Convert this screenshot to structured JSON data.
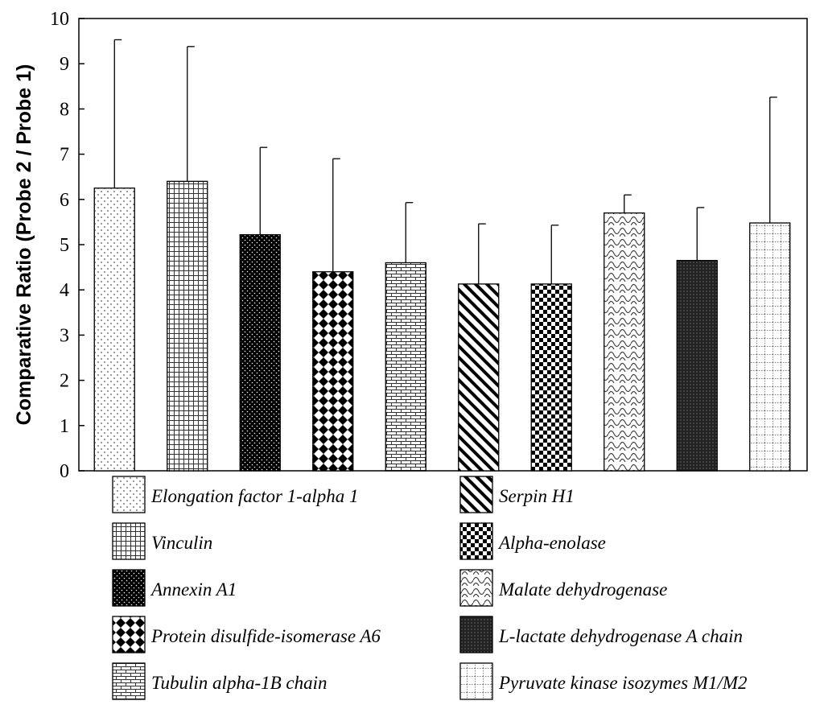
{
  "chart_data": {
    "type": "bar",
    "title": "",
    "xlabel": "",
    "ylabel": "Comparative Ratio (Probe 2 / Probe 1)",
    "ylim": [
      0,
      10
    ],
    "yticks": [
      0,
      1,
      2,
      3,
      4,
      5,
      6,
      7,
      8,
      9,
      10
    ],
    "grid": false,
    "legend_position": "bottom",
    "series": [
      {
        "name": "Elongation factor 1-alpha 1",
        "value": 6.25,
        "error": 3.28,
        "pattern": "dots"
      },
      {
        "name": "Vinculin",
        "value": 6.4,
        "error": 2.98,
        "pattern": "grid"
      },
      {
        "name": "Annexin A1",
        "value": 5.22,
        "error": 1.93,
        "pattern": "dense-dots"
      },
      {
        "name": "Protein disulfide-isomerase A6",
        "value": 4.4,
        "error": 2.5,
        "pattern": "diamonds"
      },
      {
        "name": "Tubulin alpha-1B chain",
        "value": 4.6,
        "error": 1.33,
        "pattern": "bricks"
      },
      {
        "name": "Serpin H1",
        "value": 4.13,
        "error": 1.33,
        "pattern": "diagonal"
      },
      {
        "name": "Alpha-enolase",
        "value": 4.13,
        "error": 1.3,
        "pattern": "checker"
      },
      {
        "name": "Malate dehydrogenase",
        "value": 5.7,
        "error": 0.4,
        "pattern": "waves"
      },
      {
        "name": "L-lactate dehydrogenase A chain",
        "value": 4.65,
        "error": 1.17,
        "pattern": "dark-grid"
      },
      {
        "name": "Pyruvate kinase isozymes M1/M2",
        "value": 5.48,
        "error": 2.78,
        "pattern": "light-grid"
      }
    ]
  }
}
